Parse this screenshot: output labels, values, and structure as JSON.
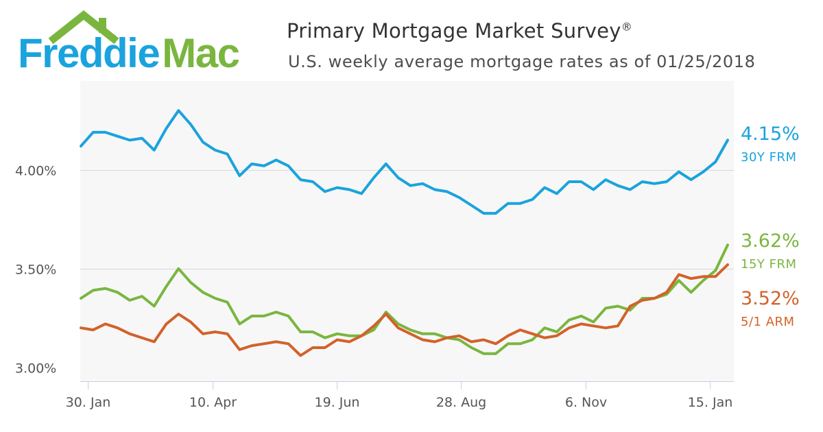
{
  "brand": {
    "name": "Freddie Mac",
    "blue": "#1aa3dd",
    "green": "#7ab63f"
  },
  "header": {
    "title": "Primary Mortgage Market Survey",
    "title_mark": "®",
    "subtitle": "U.S. weekly average mortgage rates as of 01/25/2018"
  },
  "end_labels": [
    {
      "value": "4.15%",
      "label": "30Y FRM",
      "color": "#1aa3dd"
    },
    {
      "value": "3.62%",
      "label": "15Y FRM",
      "color": "#7ab63f"
    },
    {
      "value": "3.52%",
      "label": "5/1 ARM",
      "color": "#d2622a"
    }
  ],
  "chart_data": {
    "type": "line",
    "title": "Primary Mortgage Market Survey",
    "subtitle": "U.S. weekly average mortgage rates as of 01/25/2018",
    "x_start": "2017-01-26",
    "x_end": "2018-01-25",
    "x_interval": "weekly",
    "x_tick_labels": [
      "30. Jan",
      "10. Apr",
      "19. Jun",
      "28. Aug",
      "6. Nov",
      "15. Jan"
    ],
    "ylim": [
      2.93,
      4.45
    ],
    "y_ticks": [
      3.0,
      3.5,
      4.0
    ],
    "y_tick_labels": [
      "3.00%",
      "3.50%",
      "4.00%"
    ],
    "grid": true,
    "legend": "end-of-line labels at right",
    "series": [
      {
        "name": "30Y FRM",
        "color": "#1aa3dd",
        "values": [
          4.12,
          4.19,
          4.19,
          4.17,
          4.15,
          4.16,
          4.1,
          4.21,
          4.3,
          4.23,
          4.14,
          4.1,
          4.08,
          3.97,
          4.03,
          4.02,
          4.05,
          4.02,
          3.95,
          3.94,
          3.89,
          3.91,
          3.9,
          3.88,
          3.96,
          4.03,
          3.96,
          3.92,
          3.93,
          3.9,
          3.89,
          3.86,
          3.82,
          3.78,
          3.78,
          3.83,
          3.83,
          3.85,
          3.91,
          3.88,
          3.94,
          3.94,
          3.9,
          3.95,
          3.92,
          3.9,
          3.94,
          3.93,
          3.94,
          3.99,
          3.95,
          3.99,
          4.04,
          4.15
        ]
      },
      {
        "name": "15Y FRM",
        "color": "#7ab63f",
        "values": [
          3.35,
          3.39,
          3.4,
          3.38,
          3.34,
          3.36,
          3.31,
          3.41,
          3.5,
          3.43,
          3.38,
          3.35,
          3.33,
          3.22,
          3.26,
          3.26,
          3.28,
          3.26,
          3.18,
          3.18,
          3.15,
          3.17,
          3.16,
          3.16,
          3.19,
          3.28,
          3.22,
          3.19,
          3.17,
          3.17,
          3.15,
          3.14,
          3.1,
          3.07,
          3.07,
          3.12,
          3.12,
          3.14,
          3.2,
          3.18,
          3.24,
          3.26,
          3.23,
          3.3,
          3.31,
          3.29,
          3.35,
          3.35,
          3.37,
          3.44,
          3.38,
          3.44,
          3.49,
          3.62
        ]
      },
      {
        "name": "5/1 ARM",
        "color": "#d2622a",
        "values": [
          3.2,
          3.19,
          3.22,
          3.2,
          3.17,
          3.15,
          3.13,
          3.22,
          3.27,
          3.23,
          3.17,
          3.18,
          3.17,
          3.09,
          3.11,
          3.12,
          3.13,
          3.12,
          3.06,
          3.1,
          3.1,
          3.14,
          3.13,
          3.16,
          3.21,
          3.27,
          3.2,
          3.17,
          3.14,
          3.13,
          3.15,
          3.16,
          3.13,
          3.14,
          3.12,
          3.16,
          3.19,
          3.17,
          3.15,
          3.16,
          3.2,
          3.22,
          3.21,
          3.2,
          3.21,
          3.31,
          3.34,
          3.35,
          3.38,
          3.47,
          3.45,
          3.46,
          3.46,
          3.52
        ]
      }
    ]
  }
}
